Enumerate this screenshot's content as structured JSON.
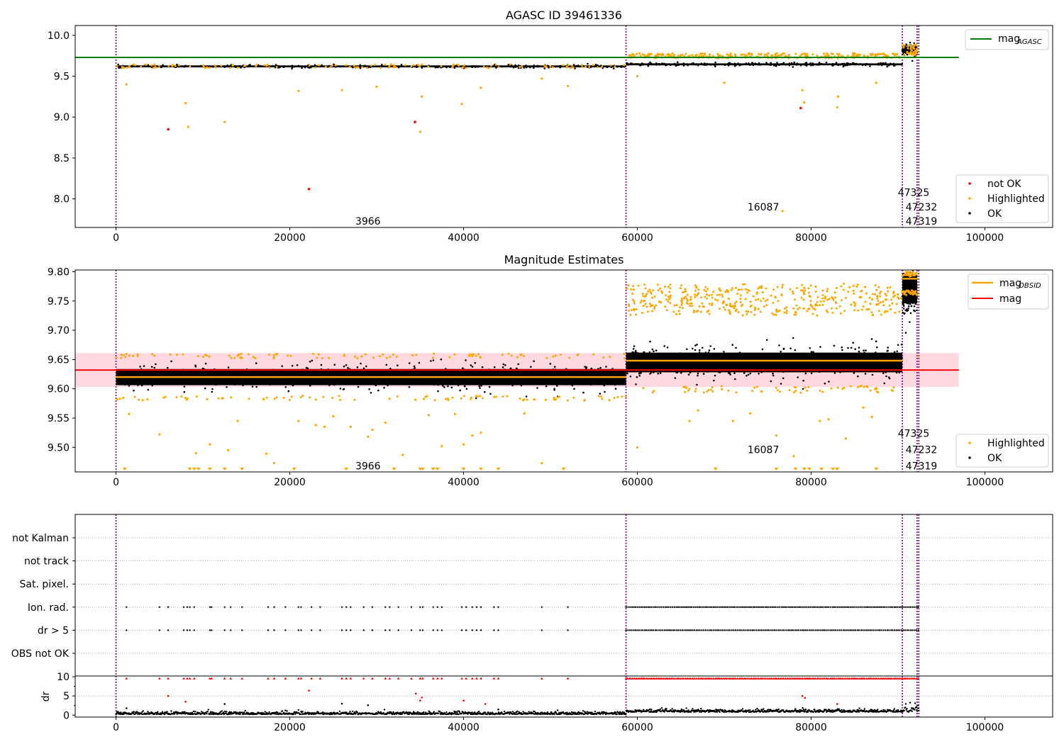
{
  "chart_data": [
    {
      "type": "scatter",
      "title": "AGASC ID 39461336",
      "xlabel": "",
      "ylabel": "",
      "xlim": [
        -4700,
        107800
      ],
      "ylim": [
        7.65,
        10.12
      ],
      "x_ticks": [
        0,
        20000,
        40000,
        60000,
        80000,
        100000
      ],
      "x_tick_labels": [
        "0",
        "20000",
        "40000",
        "60000",
        "80000",
        "100000"
      ],
      "y_ticks": [
        8.0,
        8.5,
        9.0,
        9.5,
        10.0
      ],
      "y_tick_labels": [
        "8.0",
        "8.5",
        "9.0",
        "9.5",
        "10.0"
      ],
      "vlines": [
        0,
        58700,
        90500,
        92200,
        92400
      ],
      "hline": {
        "name": "mag_AGASC",
        "y": 9.73,
        "x_end": 97000,
        "color": "#008000"
      },
      "bands": [
        {
          "from": 0,
          "to": 58700,
          "ok_center": 9.62,
          "ok_spread": 0.02,
          "hi_top": 9.645,
          "hi_bottom": 9.6
        },
        {
          "from": 58700,
          "to": 90500,
          "ok_center": 9.645,
          "ok_spread": 0.02,
          "hi_top": 9.78,
          "hi_bottom": 9.72
        },
        {
          "from": 90500,
          "to": 92200,
          "ok_center": 9.82,
          "ok_spread": 0.06,
          "hi_top": 9.9,
          "hi_bottom": 9.75
        }
      ],
      "not_ok_points": [
        [
          6000,
          8.85
        ],
        [
          22200,
          8.12
        ],
        [
          34400,
          8.94
        ],
        [
          78800,
          9.11
        ]
      ],
      "highlighted_outliers": [
        [
          1200,
          9.4
        ],
        [
          8000,
          9.17
        ],
        [
          8300,
          8.88
        ],
        [
          12500,
          8.94
        ],
        [
          21000,
          9.32
        ],
        [
          26000,
          9.33
        ],
        [
          30000,
          9.37
        ],
        [
          35000,
          8.82
        ],
        [
          35200,
          9.25
        ],
        [
          39800,
          9.16
        ],
        [
          42000,
          9.36
        ],
        [
          49000,
          9.47
        ],
        [
          52000,
          9.38
        ],
        [
          60000,
          9.5
        ],
        [
          70000,
          9.42
        ],
        [
          76700,
          7.85
        ],
        [
          79000,
          9.33
        ],
        [
          79200,
          9.18
        ],
        [
          83000,
          9.12
        ],
        [
          83100,
          9.25
        ],
        [
          87500,
          9.42
        ]
      ],
      "annotations": [
        {
          "text": "3966",
          "x": 29000,
          "y": 7.73
        },
        {
          "text": "16087",
          "x": 74500,
          "y": 7.9
        },
        {
          "text": "47325",
          "x": 91800,
          "y": 8.08
        },
        {
          "text": "47232",
          "x": 92700,
          "y": 7.9
        },
        {
          "text": "47319",
          "x": 92700,
          "y": 7.73
        }
      ],
      "legend": {
        "position": "top-right",
        "entries": [
          {
            "label": "mag",
            "sub": "AGASC",
            "color": "#008000",
            "kind": "line"
          }
        ]
      },
      "scatter_legend": {
        "position": "lower-right",
        "entries": [
          {
            "label": "not OK",
            "color": "#ff0000"
          },
          {
            "label": "Highlighted",
            "color": "#ffa500"
          },
          {
            "label": "OK",
            "color": "#000000"
          }
        ]
      }
    },
    {
      "type": "scatter",
      "title": "Magnitude Estimates",
      "xlabel": "",
      "ylabel": "",
      "xlim": [
        -4700,
        107800
      ],
      "ylim": [
        9.458,
        9.803
      ],
      "x_ticks": [
        0,
        20000,
        40000,
        60000,
        80000,
        100000
      ],
      "x_tick_labels": [
        "0",
        "20000",
        "40000",
        "60000",
        "80000",
        "100000"
      ],
      "y_ticks": [
        9.5,
        9.55,
        9.6,
        9.65,
        9.7,
        9.75,
        9.8
      ],
      "y_tick_labels": [
        "9.50",
        "9.55",
        "9.60",
        "9.65",
        "9.70",
        "9.75",
        "9.80"
      ],
      "vlines": [
        0,
        58700,
        90500,
        92200,
        92400
      ],
      "mag_line": {
        "name": "mag",
        "y": 9.632,
        "x_start": -4700,
        "x_end": 97000,
        "color": "#ff0000"
      },
      "mag_band": {
        "y_low": 9.603,
        "y_high": 9.661,
        "x_start": -4700,
        "x_end": 97000
      },
      "obsid_segments": [
        {
          "from": 0,
          "to": 58700,
          "y": 9.62
        },
        {
          "from": 58700,
          "to": 90500,
          "y": 9.648
        },
        {
          "from": 90500,
          "to": 92200,
          "y": 9.788
        },
        {
          "from": 92200,
          "to": 92400,
          "y": 9.655
        }
      ],
      "bands": [
        {
          "from": 0,
          "to": 58700,
          "ok_center": 9.62,
          "ok_spread": 0.023,
          "hi_top": 9.66,
          "hi_bottom": 9.58
        },
        {
          "from": 58700,
          "to": 90500,
          "ok_center": 9.645,
          "ok_spread": 0.028,
          "hi_top": 9.78,
          "hi_bottom": 9.73
        },
        {
          "from": 90500,
          "to": 92200,
          "ok_center": 9.77,
          "ok_spread": 0.04,
          "hi_top": 9.8,
          "hi_bottom": 9.76
        }
      ],
      "highlighted_outliers": [
        [
          1500,
          9.557
        ],
        [
          5000,
          9.522
        ],
        [
          9200,
          9.49
        ],
        [
          10800,
          9.505
        ],
        [
          12900,
          9.495
        ],
        [
          14000,
          9.545
        ],
        [
          17300,
          9.489
        ],
        [
          18200,
          9.473
        ],
        [
          21000,
          9.545
        ],
        [
          23000,
          9.538
        ],
        [
          24000,
          9.535
        ],
        [
          25000,
          9.553
        ],
        [
          27000,
          9.535
        ],
        [
          29000,
          9.518
        ],
        [
          29500,
          9.53
        ],
        [
          31000,
          9.542
        ],
        [
          33000,
          9.487
        ],
        [
          36000,
          9.555
        ],
        [
          37500,
          9.502
        ],
        [
          39000,
          9.557
        ],
        [
          40000,
          9.505
        ],
        [
          41000,
          9.52
        ],
        [
          42000,
          9.525
        ],
        [
          47000,
          9.558
        ],
        [
          49000,
          9.473
        ],
        [
          60000,
          9.5
        ],
        [
          66000,
          9.545
        ],
        [
          67000,
          9.563
        ],
        [
          71000,
          9.545
        ],
        [
          73000,
          9.558
        ],
        [
          76000,
          9.52
        ],
        [
          78000,
          9.485
        ],
        [
          81000,
          9.545
        ],
        [
          82000,
          9.548
        ],
        [
          84000,
          9.515
        ],
        [
          86000,
          9.568
        ],
        [
          87000,
          9.552
        ]
      ],
      "clipped_markers": [
        1000,
        8500,
        9000,
        9500,
        10800,
        12500,
        14500,
        20500,
        26500,
        32000,
        35000,
        35300,
        36500,
        37000,
        40000,
        42000,
        44000,
        51500,
        69000,
        76000,
        78200,
        79200,
        79800,
        81200,
        82500,
        83000,
        87500
      ],
      "annotations": [
        {
          "text": "3966",
          "x": 29000,
          "y": 9.468
        },
        {
          "text": "16087",
          "x": 74500,
          "y": 9.496
        },
        {
          "text": "47325",
          "x": 91800,
          "y": 9.524
        },
        {
          "text": "47232",
          "x": 92700,
          "y": 9.496
        },
        {
          "text": "47319",
          "x": 92700,
          "y": 9.468
        }
      ],
      "legend": {
        "position": "top-right",
        "entries": [
          {
            "label": "mag",
            "sub": "OBSID",
            "color": "#ffa500",
            "kind": "line"
          },
          {
            "label": "mag",
            "sub": "",
            "color": "#ff0000",
            "kind": "line"
          }
        ]
      },
      "scatter_legend": {
        "position": "lower-right",
        "entries": [
          {
            "label": "Highlighted",
            "color": "#ffa500"
          },
          {
            "label": "OK",
            "color": "#000000"
          }
        ]
      }
    },
    {
      "type": "scatter",
      "title": "",
      "xlabel": "",
      "ylabel": "",
      "xlim": [
        -4700,
        107800
      ],
      "categories": [
        "not Kalman",
        "not track",
        "Sat. pixel.",
        "Ion. rad.",
        "dr > 5",
        "OBS not OK"
      ],
      "vlines": [
        0,
        58700,
        90500,
        92200,
        92400
      ],
      "flag_points": {
        "Ion. rad.": {
          "sparse_until": 58700,
          "sparse_x": [
            1200,
            5000,
            6000,
            7800,
            8200,
            8500,
            9000,
            10800,
            11000,
            12500,
            13200,
            14500,
            17500,
            18200,
            19500,
            21000,
            21300,
            22500,
            23500,
            26000,
            26500,
            27000,
            28500,
            29500,
            31000,
            31500,
            32500,
            34000,
            35000,
            35300,
            36500,
            37000,
            37500,
            39800,
            40300,
            41000,
            41500,
            42000,
            43500,
            44000,
            49000,
            52000
          ],
          "dense_from": 58700,
          "dense_to": 92400
        },
        "dr > 5": {
          "sparse_until": 58700,
          "sparse_x": [
            1200,
            5000,
            6000,
            7800,
            8200,
            8500,
            9000,
            10800,
            11000,
            12500,
            13200,
            14500,
            17500,
            18200,
            19500,
            21000,
            21300,
            22500,
            23500,
            26000,
            26500,
            27000,
            28500,
            29500,
            31000,
            31500,
            32500,
            34000,
            35000,
            35300,
            36500,
            37000,
            37500,
            39800,
            40300,
            41000,
            41500,
            42000,
            43500,
            44000,
            49000,
            52000
          ],
          "dense_from": 58700,
          "dense_to": 92400
        }
      }
    },
    {
      "type": "scatter",
      "title": "",
      "xlabel": "",
      "ylabel": "dr",
      "xlim": [
        -4700,
        107800
      ],
      "ylim": [
        -0.5,
        10.2
      ],
      "y_ticks": [
        0,
        5,
        10
      ],
      "y_tick_labels": [
        "0",
        "5",
        "10"
      ],
      "x_ticks": [
        0,
        20000,
        40000,
        60000,
        80000,
        100000
      ],
      "x_tick_labels": [
        "0",
        "20000",
        "40000",
        "60000",
        "80000",
        "100000"
      ],
      "vlines": [
        0,
        58700,
        90500,
        92200,
        92400
      ],
      "red_points": [
        [
          6000,
          5.0
        ],
        [
          8000,
          3.5
        ],
        [
          22200,
          6.4
        ],
        [
          34500,
          5.6
        ],
        [
          35000,
          3.8
        ],
        [
          35200,
          4.6
        ],
        [
          40000,
          3.8
        ],
        [
          42500,
          2.9
        ],
        [
          79000,
          5.0
        ],
        [
          79300,
          4.5
        ],
        [
          83000,
          2.9
        ]
      ],
      "black_outliers": [
        [
          1200,
          1.8
        ],
        [
          12500,
          2.9
        ],
        [
          26000,
          3.0
        ],
        [
          29000,
          2.6
        ],
        [
          44000,
          1.5
        ],
        [
          76000,
          1.4
        ]
      ]
    }
  ],
  "colors": {
    "ok": "#000000",
    "highlighted": "#ffa500",
    "not_ok": "#ff0000",
    "agasc_line": "#008000",
    "mag_line": "#ff0000",
    "obsid_line": "#ffa500",
    "vline": "#800080",
    "band": "#ffc0cb"
  }
}
